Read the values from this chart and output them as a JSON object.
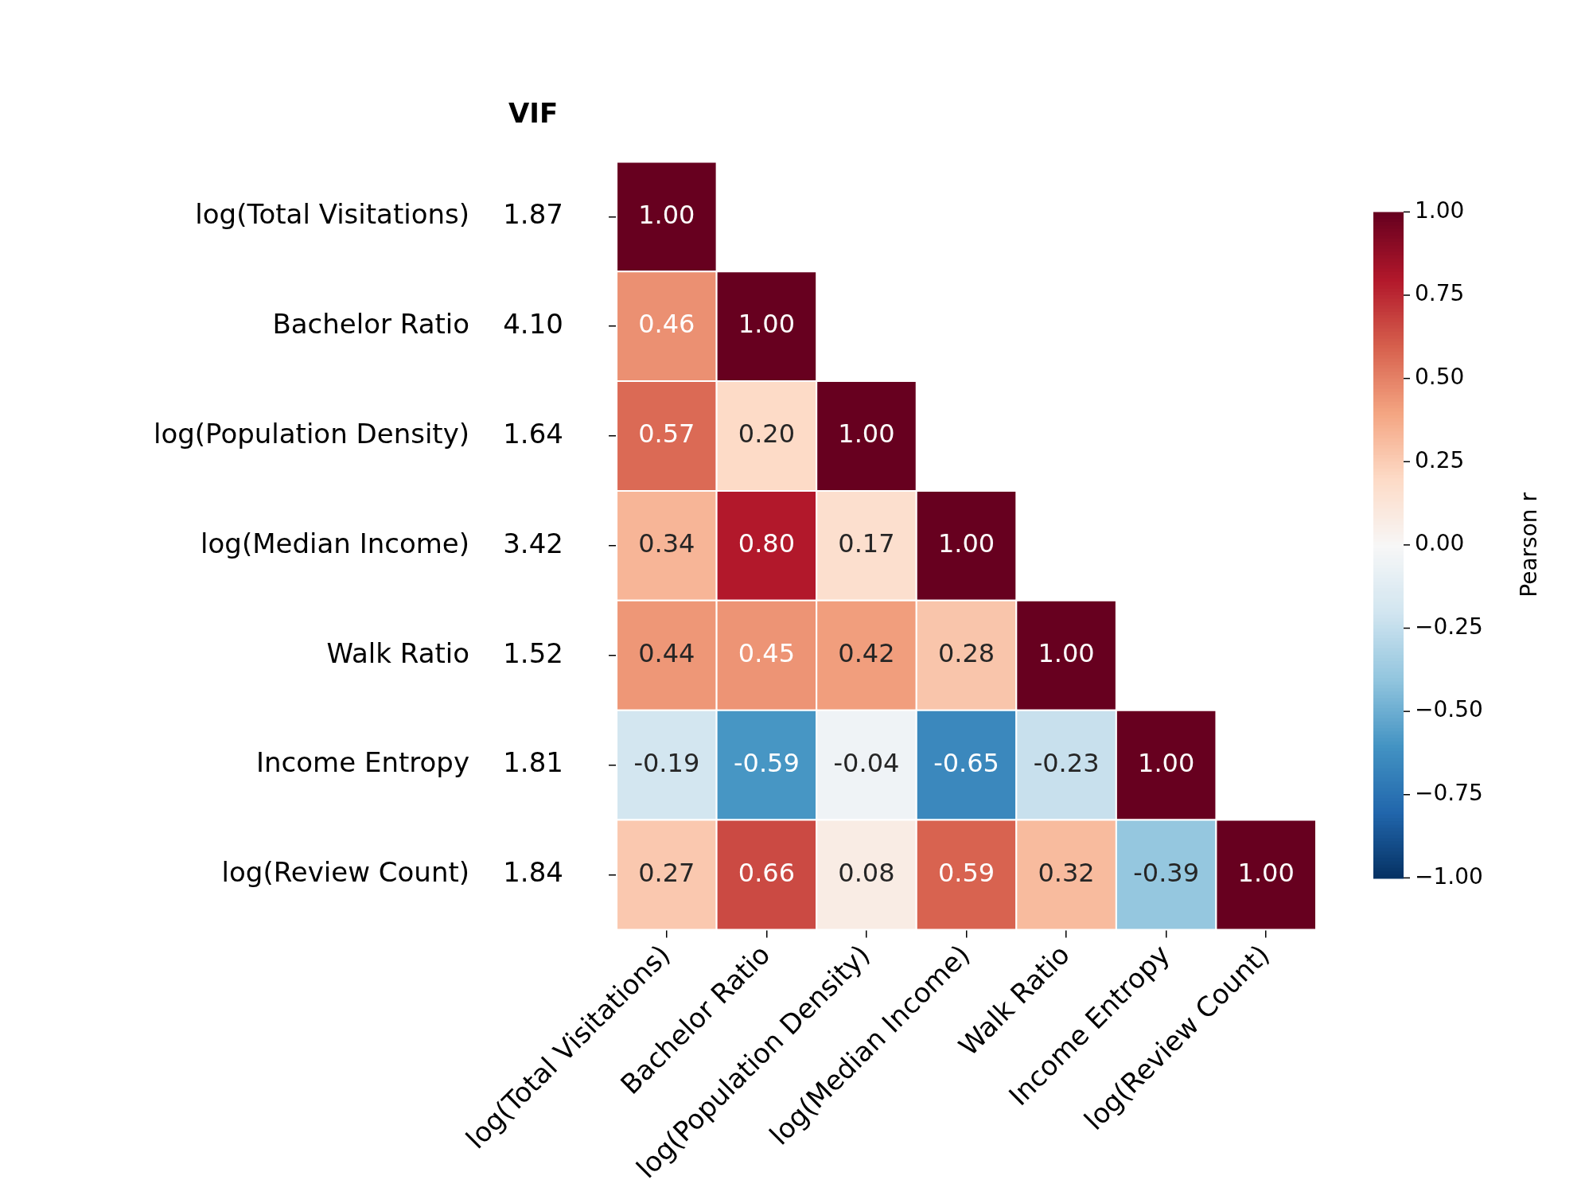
{
  "chart_data": {
    "type": "heatmap",
    "annotations": [
      "VIF"
    ],
    "clabel": "Pearson r",
    "categories": [
      "log(Total Visitations)",
      "Bachelor Ratio",
      "log(Population Density)",
      "log(Median Income)",
      "Walk Ratio",
      "Income Entropy",
      "log(Review Count)"
    ],
    "y_categories": [
      "log(Total Visitations)",
      "Bachelor Ratio",
      "log(Population Density)",
      "log(Median Income)",
      "Walk Ratio",
      "Income Entropy",
      "log(Review Count)"
    ],
    "y2_categories": [
      "1.87",
      "4.10",
      "1.64",
      "3.42",
      "1.52",
      "1.81",
      "1.84"
    ],
    "cells": [
      [
        1.0,
        null,
        null,
        null,
        null,
        null,
        null
      ],
      [
        0.46,
        1.0,
        null,
        null,
        null,
        null,
        null
      ],
      [
        0.57,
        0.2,
        1.0,
        null,
        null,
        null,
        null
      ],
      [
        0.34,
        0.8,
        0.17,
        1.0,
        null,
        null,
        null
      ],
      [
        0.44,
        0.45,
        0.42,
        0.28,
        1.0,
        null,
        null
      ],
      [
        -0.19,
        -0.59,
        -0.04,
        -0.65,
        -0.23,
        1.0,
        null
      ],
      [
        0.27,
        0.66,
        0.08,
        0.59,
        0.32,
        -0.39,
        1.0
      ]
    ],
    "cell_labels": [
      [
        "1.00",
        null,
        null,
        null,
        null,
        null,
        null
      ],
      [
        "0.46",
        "1.00",
        null,
        null,
        null,
        null,
        null
      ],
      [
        "0.57",
        "0.20",
        "1.00",
        null,
        null,
        null,
        null
      ],
      [
        "0.34",
        "0.80",
        "0.17",
        "1.00",
        null,
        null,
        null
      ],
      [
        "0.44",
        "0.45",
        "0.42",
        "0.28",
        "1.00",
        null,
        null
      ],
      [
        "-0.19",
        "-0.59",
        "-0.04",
        "-0.65",
        "-0.23",
        "1.00",
        null
      ],
      [
        "0.27",
        "0.66",
        "0.08",
        "0.59",
        "0.32",
        "-0.39",
        "1.00"
      ]
    ],
    "clim": [
      -1,
      1
    ],
    "cticks": [
      {
        "value": 1,
        "label": "1.00"
      },
      {
        "value": 0.75,
        "label": "0.75"
      },
      {
        "value": 0.5,
        "label": "0.50"
      },
      {
        "value": 0.25,
        "label": "0.25"
      },
      {
        "value": 0,
        "label": "0.00"
      },
      {
        "value": -0.25,
        "label": "−0.25"
      },
      {
        "value": -0.5,
        "label": "−0.50"
      },
      {
        "value": -0.75,
        "label": "−0.75"
      },
      {
        "value": -1,
        "label": "−1.00"
      }
    ]
  }
}
